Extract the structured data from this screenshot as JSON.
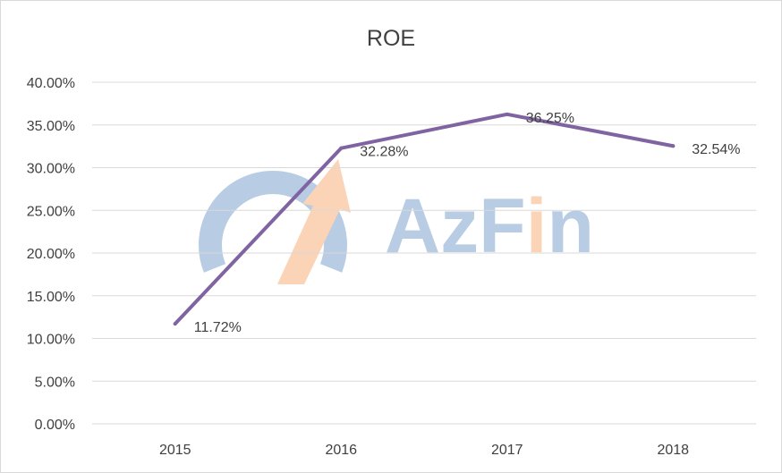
{
  "chart_data": {
    "type": "line",
    "title": "ROE",
    "xlabel": "",
    "ylabel": "",
    "categories": [
      "2015",
      "2016",
      "2017",
      "2018"
    ],
    "series": [
      {
        "values": [
          11.72,
          32.28,
          36.25,
          32.54
        ],
        "color": "#8064a2"
      }
    ],
    "data_labels": [
      "11.72%",
      "32.28%",
      "36.25%",
      "32.54%"
    ],
    "y_ticks": [
      "0.00%",
      "5.00%",
      "10.00%",
      "15.00%",
      "20.00%",
      "25.00%",
      "30.00%",
      "35.00%",
      "40.00%"
    ],
    "ylim": [
      0,
      40
    ],
    "y_unit": "%",
    "grid": true,
    "legend": "none"
  },
  "watermark": {
    "text_parts": [
      "AzF",
      "i",
      "n"
    ],
    "primary_color": "#aec4e0",
    "accent_color": "#f7c8a6"
  },
  "colors": {
    "gridline": "#d9d9d9",
    "text": "#404040",
    "line": "#8064a2"
  }
}
